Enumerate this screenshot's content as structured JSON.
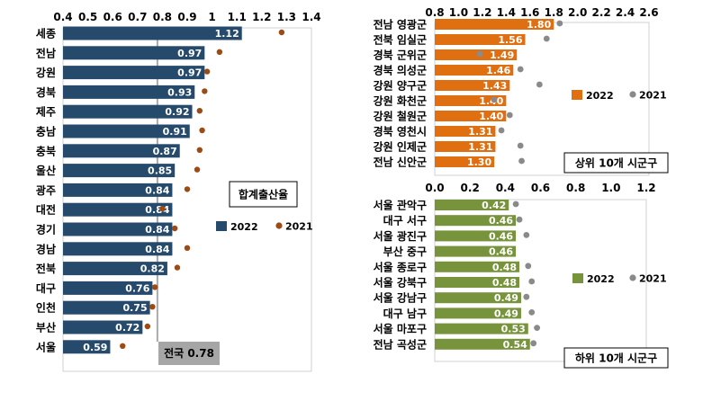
{
  "chart_data": [
    {
      "type": "bar",
      "orientation": "horizontal",
      "categories": [
        "세종",
        "전남",
        "강원",
        "경북",
        "제주",
        "충남",
        "충북",
        "울산",
        "광주",
        "대전",
        "경기",
        "경남",
        "전북",
        "대구",
        "인천",
        "부산",
        "서울"
      ],
      "series": [
        {
          "name": "2022",
          "color": "#264a6b",
          "values": [
            1.12,
            0.97,
            0.97,
            0.93,
            0.92,
            0.91,
            0.87,
            0.85,
            0.84,
            0.84,
            0.84,
            0.84,
            0.82,
            0.76,
            0.75,
            0.72,
            0.59
          ],
          "labels": [
            "1.12",
            "0.97",
            "0.97",
            "0.93",
            "0.92",
            "0.91",
            "0.87",
            "0.85",
            "0.84",
            "0.84",
            "0.84",
            "0.84",
            "0.82",
            "0.76",
            "0.75",
            "0.72",
            "0.59"
          ]
        },
        {
          "name": "2021",
          "color": "#9c4a16",
          "marker": "dot",
          "values": [
            1.28,
            1.03,
            0.98,
            0.97,
            0.95,
            0.96,
            0.95,
            0.94,
            0.9,
            0.8,
            0.85,
            0.9,
            0.86,
            0.77,
            0.76,
            0.74,
            0.64
          ]
        }
      ],
      "xlim": [
        0.4,
        1.4
      ],
      "xticks": [
        "0.4",
        "0.5",
        "0.6",
        "0.7",
        "0.8",
        "0.9",
        "1",
        "1.1",
        "1.2",
        "1.3",
        "1.4"
      ],
      "axis_position": "top",
      "annotation": "합계출산율",
      "reference_line": {
        "value": 0.78,
        "label": "전국 0.78"
      },
      "legend_position": "right"
    },
    {
      "type": "bar",
      "orientation": "horizontal",
      "categories": [
        "전남 영광군",
        "전북 임실군",
        "경북 군위군",
        "경북 의성군",
        "강원 양구군",
        "강원 화천군",
        "강원 철원군",
        "경북 영천시",
        "강원 인제군",
        "전남 신안군"
      ],
      "series": [
        {
          "name": "2022",
          "color": "#e06f12",
          "values": [
            1.8,
            1.56,
            1.49,
            1.46,
            1.43,
            1.4,
            1.4,
            1.31,
            1.31,
            1.3
          ],
          "labels": [
            "1.80",
            "1.56",
            "1.49",
            "1.46",
            "1.43",
            "1.40",
            "1.40",
            "1.31",
            "1.31",
            "1.30"
          ]
        },
        {
          "name": "2021",
          "color": "#8a8a8a",
          "marker": "dot",
          "values": [
            1.85,
            1.74,
            1.18,
            1.52,
            1.68,
            1.3,
            1.43,
            1.36,
            1.52,
            1.53
          ]
        }
      ],
      "xlim": [
        0.8,
        2.6
      ],
      "xticks": [
        "0.8",
        "1.0",
        "1.2",
        "1.4",
        "1.6",
        "1.8",
        "2.0",
        "2.2",
        "2.4",
        "2.6"
      ],
      "axis_position": "top",
      "annotation": "상위 10개 시군구",
      "legend_position": "right"
    },
    {
      "type": "bar",
      "orientation": "horizontal",
      "categories": [
        "서울 관악구",
        "대구 서구",
        "서울 광진구",
        "부산 중구",
        "서울 종로구",
        "서울 강북구",
        "서울 강남구",
        "대구 남구",
        "서울 마포구",
        "전남 곡성군"
      ],
      "series": [
        {
          "name": "2022",
          "color": "#77933c",
          "values": [
            0.42,
            0.46,
            0.46,
            0.46,
            0.48,
            0.48,
            0.49,
            0.49,
            0.53,
            0.54
          ],
          "labels": [
            "0.42",
            "0.46",
            "0.46",
            "0.46",
            "0.48",
            "0.48",
            "0.49",
            "0.49",
            "0.53",
            "0.54"
          ]
        },
        {
          "name": "2021",
          "color": "#8a8a8a",
          "marker": "dot",
          "values": [
            0.46,
            0.48,
            0.52,
            null,
            0.53,
            0.55,
            0.52,
            0.55,
            0.58,
            0.56
          ]
        }
      ],
      "xlim": [
        0.0,
        1.2
      ],
      "xticks": [
        "0.0",
        "0.2",
        "0.4",
        "0.6",
        "0.8",
        "1.0",
        "1.2"
      ],
      "axis_position": "top",
      "annotation": "하위 10개 시군구",
      "legend_position": "right"
    }
  ]
}
